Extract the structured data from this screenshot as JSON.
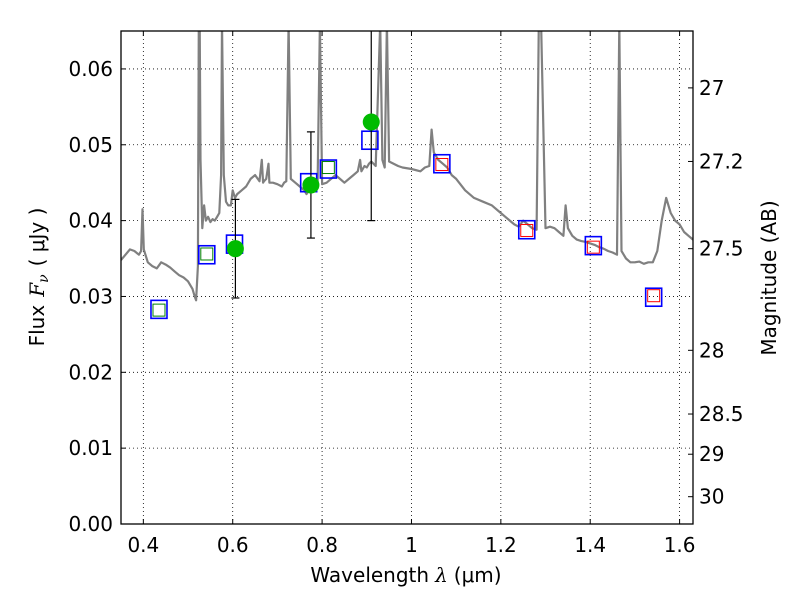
{
  "chart_data": {
    "type": "line",
    "title": "",
    "xlabel": "Wavelength",
    "xlabel_symbol": "λ",
    "xlabel_unit": "(μm)",
    "ylabel": "Flux",
    "ylabel_symbol": "F",
    "ylabel_subscript": "ν",
    "ylabel_unit": "( μJy )",
    "y2label": "Magnitude (AB)",
    "xlim": [
      0.35,
      1.63
    ],
    "ylim": [
      0.0,
      0.065
    ],
    "grid": true,
    "x_ticks": [
      0.4,
      0.6,
      0.8,
      1.0,
      1.2,
      1.4,
      1.6
    ],
    "x_tick_labels": [
      "0.4",
      "0.6",
      "0.8",
      "1",
      "1.2",
      "1.4",
      "1.6"
    ],
    "y_ticks": [
      0.0,
      0.01,
      0.02,
      0.03,
      0.04,
      0.05,
      0.06
    ],
    "y_tick_labels": [
      "0.00",
      "0.01",
      "0.02",
      "0.03",
      "0.04",
      "0.05",
      "0.06"
    ],
    "y2_ticks": [
      {
        "label": "27",
        "flux": 0.0575
      },
      {
        "label": "27.2",
        "flux": 0.0478
      },
      {
        "label": "27.5",
        "flux": 0.0363
      },
      {
        "label": "28",
        "flux": 0.0229
      },
      {
        "label": "28.5",
        "flux": 0.0145
      },
      {
        "label": "29",
        "flux": 0.0092
      },
      {
        "label": "30",
        "flux": 0.0036
      }
    ],
    "sed_model": {
      "name": "model SED",
      "color": "#808080",
      "points": [
        [
          0.35,
          0.0348
        ],
        [
          0.36,
          0.0355
        ],
        [
          0.37,
          0.0362
        ],
        [
          0.38,
          0.036
        ],
        [
          0.39,
          0.0355
        ],
        [
          0.395,
          0.036
        ],
        [
          0.398,
          0.0415
        ],
        [
          0.401,
          0.0362
        ],
        [
          0.41,
          0.0345
        ],
        [
          0.42,
          0.034
        ],
        [
          0.43,
          0.0337
        ],
        [
          0.44,
          0.0345
        ],
        [
          0.45,
          0.0342
        ],
        [
          0.46,
          0.0338
        ],
        [
          0.47,
          0.0333
        ],
        [
          0.48,
          0.0328
        ],
        [
          0.49,
          0.0325
        ],
        [
          0.5,
          0.032
        ],
        [
          0.51,
          0.031
        ],
        [
          0.515,
          0.03
        ],
        [
          0.518,
          0.0295
        ],
        [
          0.522,
          0.034
        ],
        [
          0.524,
          0.066
        ],
        [
          0.526,
          0.066
        ],
        [
          0.528,
          0.048
        ],
        [
          0.532,
          0.039
        ],
        [
          0.536,
          0.042
        ],
        [
          0.54,
          0.04
        ],
        [
          0.545,
          0.0405
        ],
        [
          0.55,
          0.0398
        ],
        [
          0.555,
          0.0402
        ],
        [
          0.56,
          0.04
        ],
        [
          0.565,
          0.0405
        ],
        [
          0.57,
          0.041
        ],
        [
          0.574,
          0.046
        ],
        [
          0.576,
          0.066
        ],
        [
          0.58,
          0.046
        ],
        [
          0.585,
          0.0425
        ],
        [
          0.59,
          0.042
        ],
        [
          0.596,
          0.042
        ],
        [
          0.6,
          0.044
        ],
        [
          0.605,
          0.043
        ],
        [
          0.61,
          0.0435
        ],
        [
          0.62,
          0.044
        ],
        [
          0.63,
          0.0445
        ],
        [
          0.64,
          0.0455
        ],
        [
          0.65,
          0.046
        ],
        [
          0.66,
          0.0452
        ],
        [
          0.665,
          0.048
        ],
        [
          0.668,
          0.045
        ],
        [
          0.67,
          0.0452
        ],
        [
          0.675,
          0.0455
        ],
        [
          0.68,
          0.0475
        ],
        [
          0.682,
          0.045
        ],
        [
          0.69,
          0.045
        ],
        [
          0.7,
          0.0448
        ],
        [
          0.71,
          0.0445
        ],
        [
          0.715,
          0.045
        ],
        [
          0.72,
          0.0452
        ],
        [
          0.725,
          0.066
        ],
        [
          0.73,
          0.0455
        ],
        [
          0.74,
          0.045
        ],
        [
          0.75,
          0.0445
        ],
        [
          0.76,
          0.044
        ],
        [
          0.765,
          0.0435
        ],
        [
          0.77,
          0.044
        ],
        [
          0.775,
          0.0438
        ],
        [
          0.78,
          0.0442
        ],
        [
          0.785,
          0.0445
        ],
        [
          0.79,
          0.045
        ],
        [
          0.795,
          0.066
        ],
        [
          0.8,
          0.0448
        ],
        [
          0.81,
          0.045
        ],
        [
          0.82,
          0.0455
        ],
        [
          0.83,
          0.046
        ],
        [
          0.84,
          0.0455
        ],
        [
          0.85,
          0.045
        ],
        [
          0.86,
          0.0455
        ],
        [
          0.87,
          0.046
        ],
        [
          0.88,
          0.0465
        ],
        [
          0.885,
          0.048
        ],
        [
          0.888,
          0.0465
        ],
        [
          0.895,
          0.0472
        ],
        [
          0.9,
          0.047
        ],
        [
          0.905,
          0.0475
        ],
        [
          0.91,
          0.0478
        ],
        [
          0.92,
          0.0472
        ],
        [
          0.93,
          0.066
        ],
        [
          0.935,
          0.048
        ],
        [
          0.94,
          0.047
        ],
        [
          0.945,
          0.066
        ],
        [
          0.95,
          0.0478
        ],
        [
          0.96,
          0.0475
        ],
        [
          0.97,
          0.0472
        ],
        [
          0.98,
          0.047
        ],
        [
          1.0,
          0.0468
        ],
        [
          1.02,
          0.0465
        ],
        [
          1.03,
          0.047
        ],
        [
          1.04,
          0.0472
        ],
        [
          1.045,
          0.052
        ],
        [
          1.05,
          0.049
        ],
        [
          1.06,
          0.048
        ],
        [
          1.07,
          0.0475
        ],
        [
          1.08,
          0.047
        ],
        [
          1.09,
          0.046
        ],
        [
          1.1,
          0.0455
        ],
        [
          1.12,
          0.044
        ],
        [
          1.14,
          0.043
        ],
        [
          1.16,
          0.0425
        ],
        [
          1.18,
          0.042
        ],
        [
          1.2,
          0.041
        ],
        [
          1.21,
          0.0405
        ],
        [
          1.22,
          0.04
        ],
        [
          1.23,
          0.0395
        ],
        [
          1.24,
          0.0392
        ],
        [
          1.25,
          0.04
        ],
        [
          1.26,
          0.0395
        ],
        [
          1.27,
          0.039
        ],
        [
          1.28,
          0.0388
        ],
        [
          1.285,
          0.066
        ],
        [
          1.29,
          0.066
        ],
        [
          1.3,
          0.039
        ],
        [
          1.31,
          0.0392
        ],
        [
          1.32,
          0.039
        ],
        [
          1.33,
          0.0385
        ],
        [
          1.34,
          0.038
        ],
        [
          1.345,
          0.042
        ],
        [
          1.35,
          0.039
        ],
        [
          1.36,
          0.038
        ],
        [
          1.37,
          0.0375
        ],
        [
          1.38,
          0.0373
        ],
        [
          1.39,
          0.0372
        ],
        [
          1.4,
          0.037
        ],
        [
          1.41,
          0.0368
        ],
        [
          1.42,
          0.0365
        ],
        [
          1.43,
          0.0363
        ],
        [
          1.44,
          0.036
        ],
        [
          1.45,
          0.0358
        ],
        [
          1.46,
          0.0355
        ],
        [
          1.465,
          0.066
        ],
        [
          1.47,
          0.036
        ],
        [
          1.48,
          0.035
        ],
        [
          1.49,
          0.0345
        ],
        [
          1.5,
          0.0345
        ],
        [
          1.51,
          0.0346
        ],
        [
          1.52,
          0.0343
        ],
        [
          1.53,
          0.0345
        ],
        [
          1.54,
          0.0345
        ],
        [
          1.55,
          0.036
        ],
        [
          1.56,
          0.04
        ],
        [
          1.57,
          0.043
        ],
        [
          1.58,
          0.041
        ],
        [
          1.59,
          0.04
        ],
        [
          1.6,
          0.0395
        ],
        [
          1.61,
          0.0385
        ],
        [
          1.62,
          0.038
        ],
        [
          1.63,
          0.0375
        ]
      ]
    },
    "model_photometry_blue": {
      "name": "model photometry (blue squares)",
      "color": "#0000ff",
      "points": [
        [
          0.435,
          0.0283
        ],
        [
          0.542,
          0.0355
        ],
        [
          0.604,
          0.0369
        ],
        [
          0.77,
          0.045
        ],
        [
          0.814,
          0.0468
        ],
        [
          0.907,
          0.0506
        ],
        [
          1.068,
          0.0475
        ],
        [
          1.258,
          0.0388
        ],
        [
          1.407,
          0.0367
        ],
        [
          1.542,
          0.0299
        ]
      ]
    },
    "observed_squares": {
      "name": "observed photometry (green/red squares)",
      "points": [
        {
          "x": 0.435,
          "y": 0.0282,
          "color": "#008000"
        },
        {
          "x": 0.542,
          "y": 0.0356,
          "color": "#008000"
        },
        {
          "x": 0.814,
          "y": 0.047,
          "color": "#008000"
        },
        {
          "x": 1.068,
          "y": 0.0474,
          "color": "#ff0000"
        },
        {
          "x": 1.258,
          "y": 0.0387,
          "color": "#ff0000"
        },
        {
          "x": 1.407,
          "y": 0.0365,
          "color": "#ff0000"
        },
        {
          "x": 1.542,
          "y": 0.0301,
          "color": "#ff0000"
        }
      ]
    },
    "measurements": {
      "name": "measured flux with error bars",
      "color": "#00bb00",
      "points": [
        {
          "x": 0.606,
          "y": 0.0363,
          "err": 0.0065
        },
        {
          "x": 0.775,
          "y": 0.0447,
          "err": 0.007
        },
        {
          "x": 0.91,
          "y": 0.053,
          "err": 0.013
        }
      ]
    }
  }
}
